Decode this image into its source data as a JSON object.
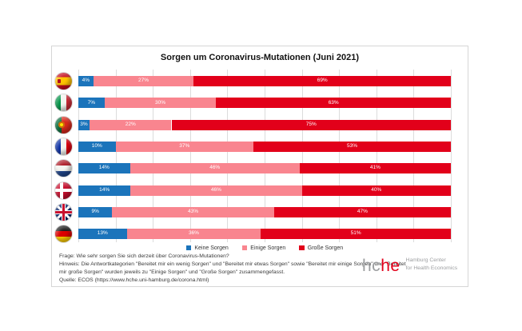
{
  "chart_data": {
    "type": "bar",
    "orientation": "horizontal",
    "stacked": true,
    "title": "Sorgen um Coronavirus-Mutationen (Juni 2021)",
    "categories": [
      "Spanien",
      "Italien",
      "Portugal",
      "Frankreich",
      "Niederlande",
      "Dänemark",
      "Großbritannien",
      "Deutschland"
    ],
    "category_flag_icons": [
      "es",
      "it",
      "pt",
      "fr",
      "nl",
      "dk",
      "gb",
      "de"
    ],
    "series": [
      {
        "name": "Keine Sorgen",
        "color": "#1B74BB",
        "values": [
          4,
          7,
          3,
          10,
          14,
          14,
          9,
          13
        ]
      },
      {
        "name": "Einige Sorgen",
        "color": "#F9858F",
        "values": [
          27,
          30,
          22,
          37,
          46,
          46,
          43,
          36
        ]
      },
      {
        "name": "Große Sorgen",
        "color": "#E2001A",
        "values": [
          69,
          63,
          75,
          53,
          41,
          40,
          47,
          51
        ]
      }
    ],
    "xlim": [
      0,
      100
    ],
    "grid": true,
    "grid_interval": 10,
    "gridline_color": "#dcdcdc",
    "legend_position": "bottom",
    "value_suffix": "%"
  },
  "footer": {
    "frage": "Frage: Wie sehr sorgen Sie sich derzeit über  Coronavirus-Mutationen?",
    "hinweis": "Hinweis: Die Antwortkategorien \"Bereitet mir ein wenig Sorgen\" und \"Bereitet mir etwas Sorgen\" sowie \"Bereitet mir einige Sorgen\" und \"Bereitet mir große Sorgen\" wurden jeweils zu \"Einige Sorgen\" und \"Große Sorgen\" zusammengefasst.",
    "quelle": "Quelle: ECOS (https://www.hche.uni-hamburg.de/corona.html)"
  },
  "logo": {
    "word_gray": "hc",
    "word_red": "he",
    "sub_line1": "Hamburg Center",
    "sub_line2": "for Health Economics"
  }
}
